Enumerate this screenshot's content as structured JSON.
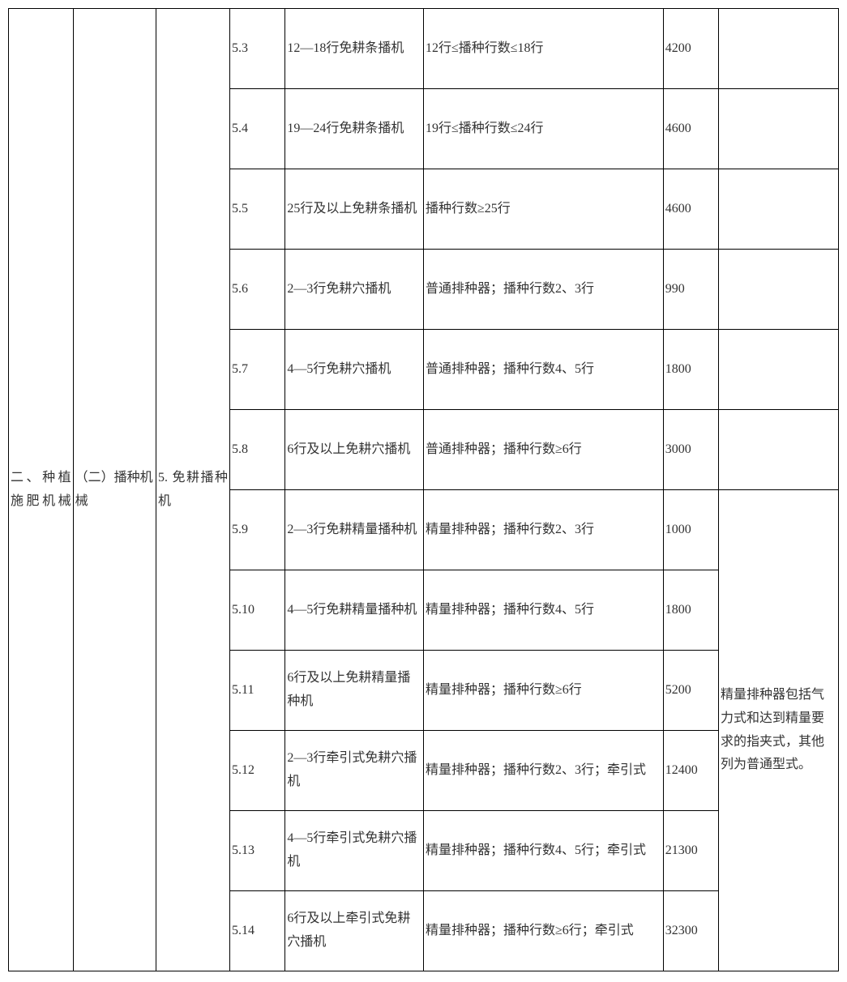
{
  "colA": "二、种植施肥机械",
  "colB": "（二）播种机械",
  "colC": "5. 免耕播种机",
  "rows": [
    {
      "num": "5.3",
      "name": "12—18行免耕条播机",
      "spec": "12行≤播种行数≤18行",
      "price": "4200",
      "note": ""
    },
    {
      "num": "5.4",
      "name": "19—24行免耕条播机",
      "spec": "19行≤播种行数≤24行",
      "price": "4600",
      "note": ""
    },
    {
      "num": "5.5",
      "name": "25行及以上免耕条播机",
      "spec": "播种行数≥25行",
      "price": "4600",
      "note": ""
    },
    {
      "num": "5.6",
      "name": "2—3行免耕穴播机",
      "spec": "普通排种器；播种行数2、3行",
      "price": "990",
      "note": ""
    },
    {
      "num": "5.7",
      "name": "4—5行免耕穴播机",
      "spec": "普通排种器；播种行数4、5行",
      "price": "1800",
      "note": ""
    },
    {
      "num": "5.8",
      "name": "6行及以上免耕穴播机",
      "spec": "普通排种器；播种行数≥6行",
      "price": "3000",
      "note": ""
    },
    {
      "num": "5.9",
      "name": "2—3行免耕精量播种机",
      "spec": "精量排种器；播种行数2、3行",
      "price": "1000",
      "note": "merge-start"
    },
    {
      "num": "5.10",
      "name": "4—5行免耕精量播种机",
      "spec": "精量排种器；播种行数4、5行",
      "price": "1800",
      "note": "merged"
    },
    {
      "num": "5.11",
      "name": "6行及以上免耕精量播种机",
      "spec": "精量排种器；播种行数≥6行",
      "price": "5200",
      "note": "merged"
    },
    {
      "num": "5.12",
      "name": "2—3行牵引式免耕穴播机",
      "spec": "精量排种器；播种行数2、3行；牵引式",
      "price": "12400",
      "note": "merged"
    },
    {
      "num": "5.13",
      "name": "4—5行牵引式免耕穴播机",
      "spec": "精量排种器；播种行数4、5行；牵引式",
      "price": "21300",
      "note": "merged"
    },
    {
      "num": "5.14",
      "name": "6行及以上牵引式免耕穴播机",
      "spec": "精量排种器；播种行数≥6行；牵引式",
      "price": "32300",
      "note": "merged"
    }
  ],
  "mergedNote": "精量排种器包括气力式和达到精量要求的指夹式，其他列为普通型式。",
  "style": {
    "rowHeightPx": 98,
    "fontSizePx": 16,
    "borderColor": "#000000",
    "textColor": "#333333",
    "bgColor": "#ffffff",
    "colWidthsPx": [
      70,
      90,
      80,
      60,
      150,
      260,
      60,
      130
    ]
  }
}
